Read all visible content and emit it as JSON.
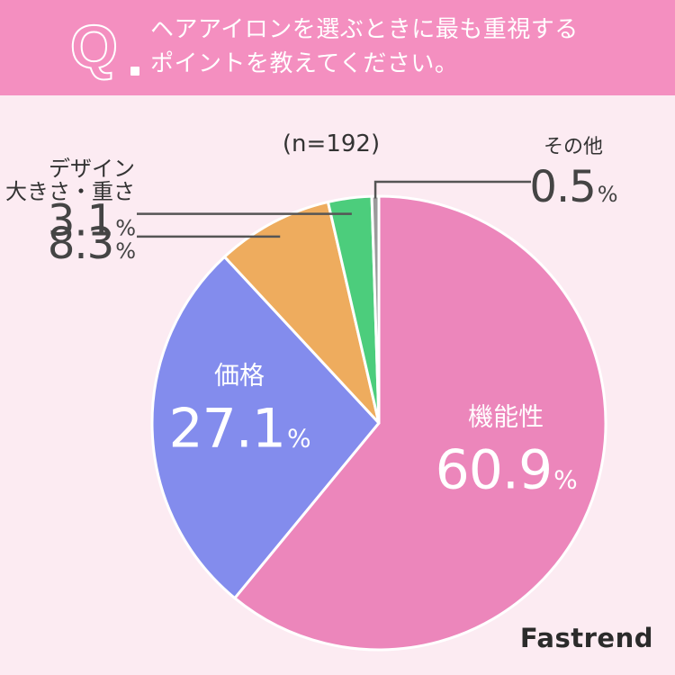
{
  "header": {
    "q_mark": "Q",
    "question_line1": "ヘアアイロンを選ぶときに最も重視する",
    "question_line2": "ポイントを教えてください。",
    "background_color": "#f48fc0"
  },
  "chart_data": {
    "type": "pie",
    "n_label": "(n=192)",
    "start_angle_deg": 0,
    "direction": "clockwise",
    "slices": [
      {
        "label": "機能性",
        "value": 60.9,
        "value_text": "60.9",
        "unit": "%",
        "color": "#ec86bb",
        "label_position": "inside"
      },
      {
        "label": "価格",
        "value": 27.1,
        "value_text": "27.1",
        "unit": "%",
        "color": "#838ced",
        "label_position": "inside"
      },
      {
        "label": "大きさ・重さ",
        "value": 8.3,
        "value_text": "8.3",
        "unit": "%",
        "color": "#eeac5e",
        "label_position": "outside-left"
      },
      {
        "label": "デザイン",
        "value": 3.1,
        "value_text": "3.1",
        "unit": "%",
        "color": "#4ccd7c",
        "label_position": "outside-left"
      },
      {
        "label": "その他",
        "value": 0.5,
        "value_text": "0.5",
        "unit": "%",
        "color": "#9b9b9b",
        "label_position": "outside-right"
      }
    ]
  },
  "brand": "Fastrend"
}
